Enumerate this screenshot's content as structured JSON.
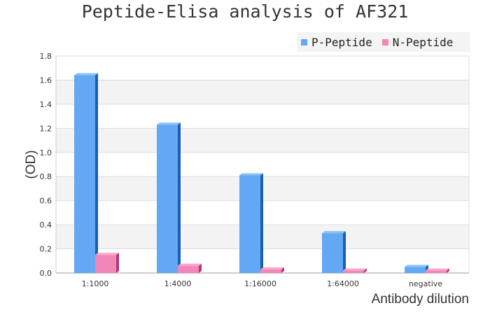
{
  "chart_data": {
    "type": "bar",
    "title": "Peptide-Elisa analysis of AF321",
    "xlabel": "Antibody dilution",
    "ylabel": "(OD)",
    "categories": [
      "1:1000",
      "1:4000",
      "1:16000",
      "1:64000",
      "negative"
    ],
    "series": [
      {
        "name": "P-Peptide",
        "color": "#62a8f2",
        "values": [
          1.64,
          1.23,
          0.81,
          0.33,
          0.05
        ]
      },
      {
        "name": "N-Peptide",
        "color": "#f286b9",
        "values": [
          0.15,
          0.06,
          0.03,
          0.02,
          0.02
        ]
      }
    ],
    "ylim": [
      0,
      1.8
    ],
    "yticks": [
      "0.0",
      "0.2",
      "0.4",
      "0.6",
      "0.8",
      "1.0",
      "1.2",
      "1.4",
      "1.6",
      "1.8"
    ],
    "grid": true,
    "legend": "top-right"
  }
}
